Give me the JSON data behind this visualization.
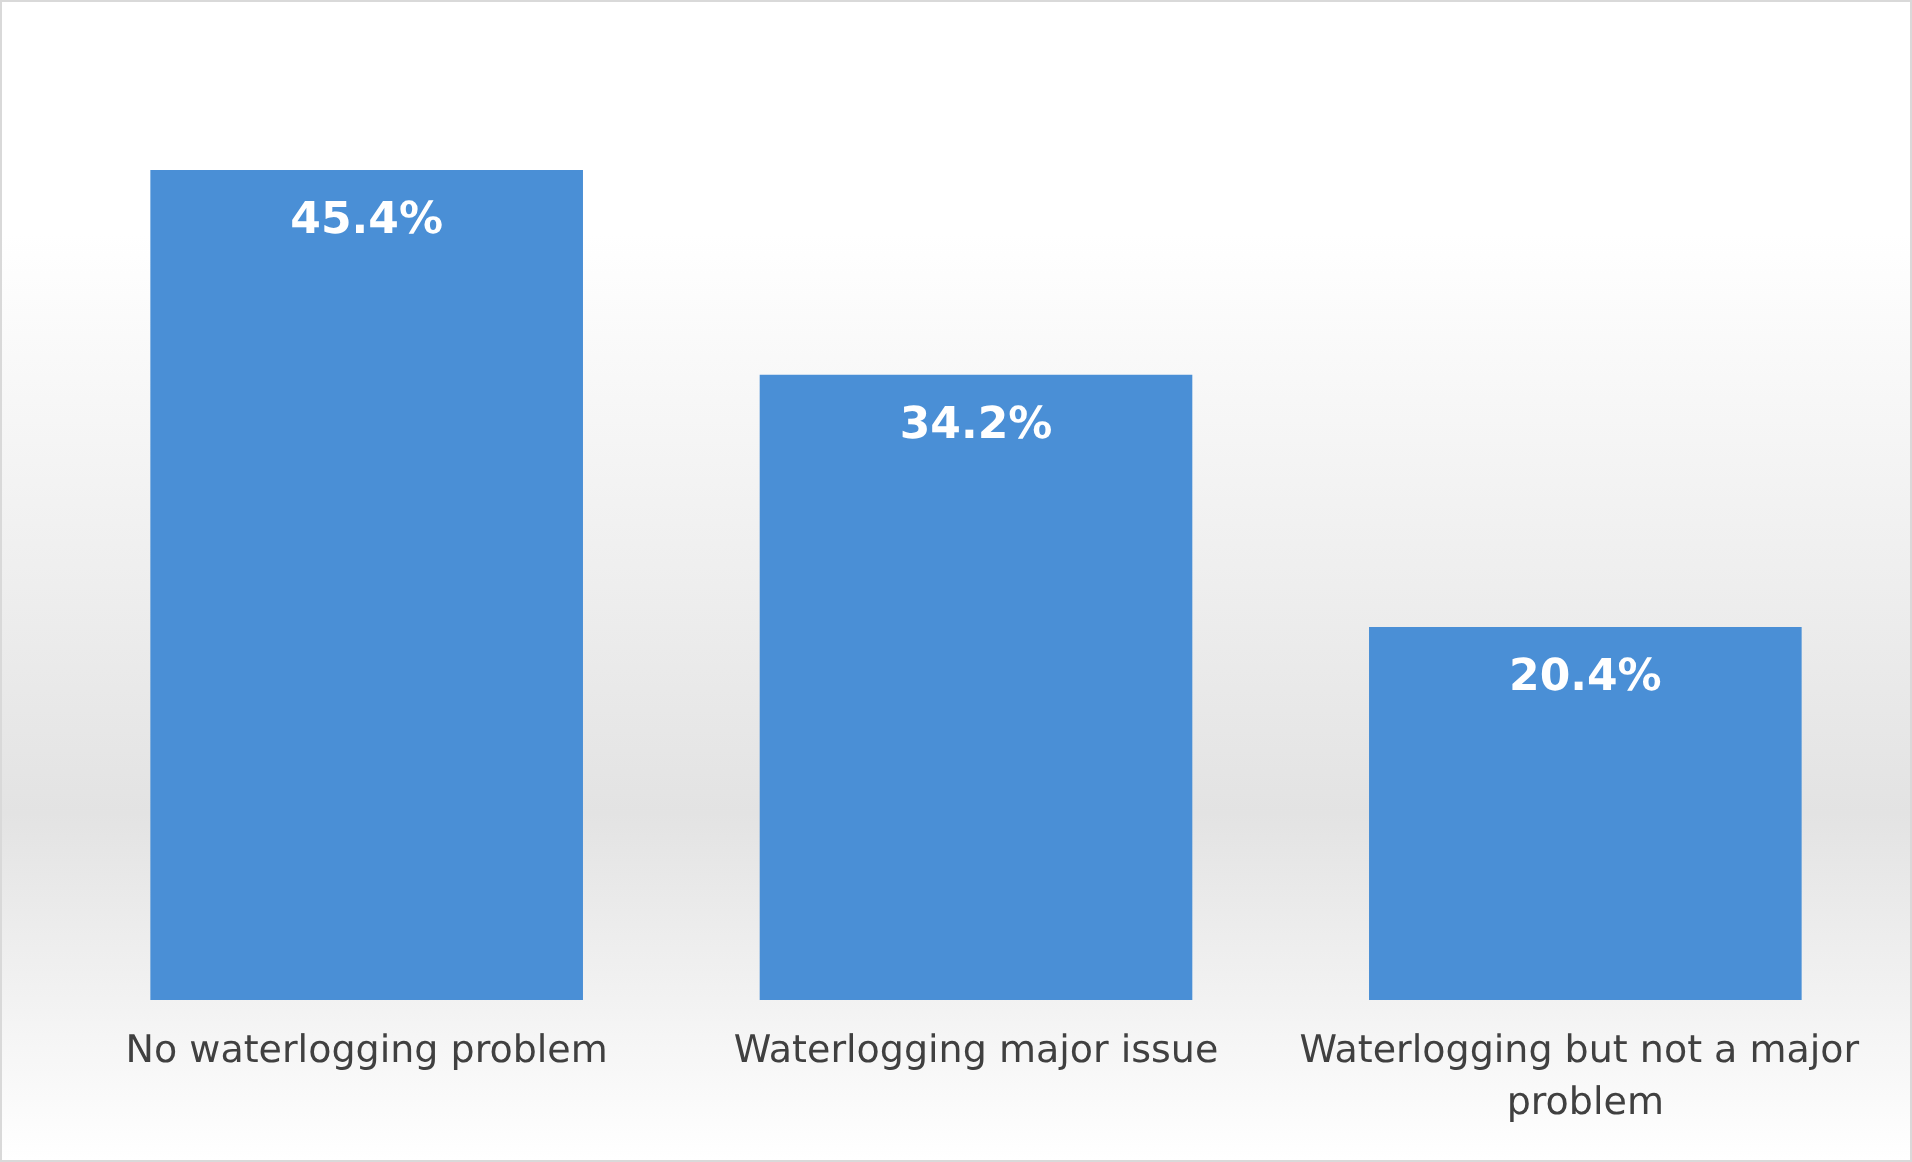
{
  "chart_data": {
    "type": "bar",
    "categories": [
      "No waterlogging problem",
      "Waterlogging major issue",
      "Waterlogging but not a major problem"
    ],
    "values": [
      45.4,
      34.2,
      20.4
    ],
    "value_labels": [
      "45.4%",
      "34.2%",
      "20.4%"
    ],
    "color": "#4a8fd6"
  }
}
